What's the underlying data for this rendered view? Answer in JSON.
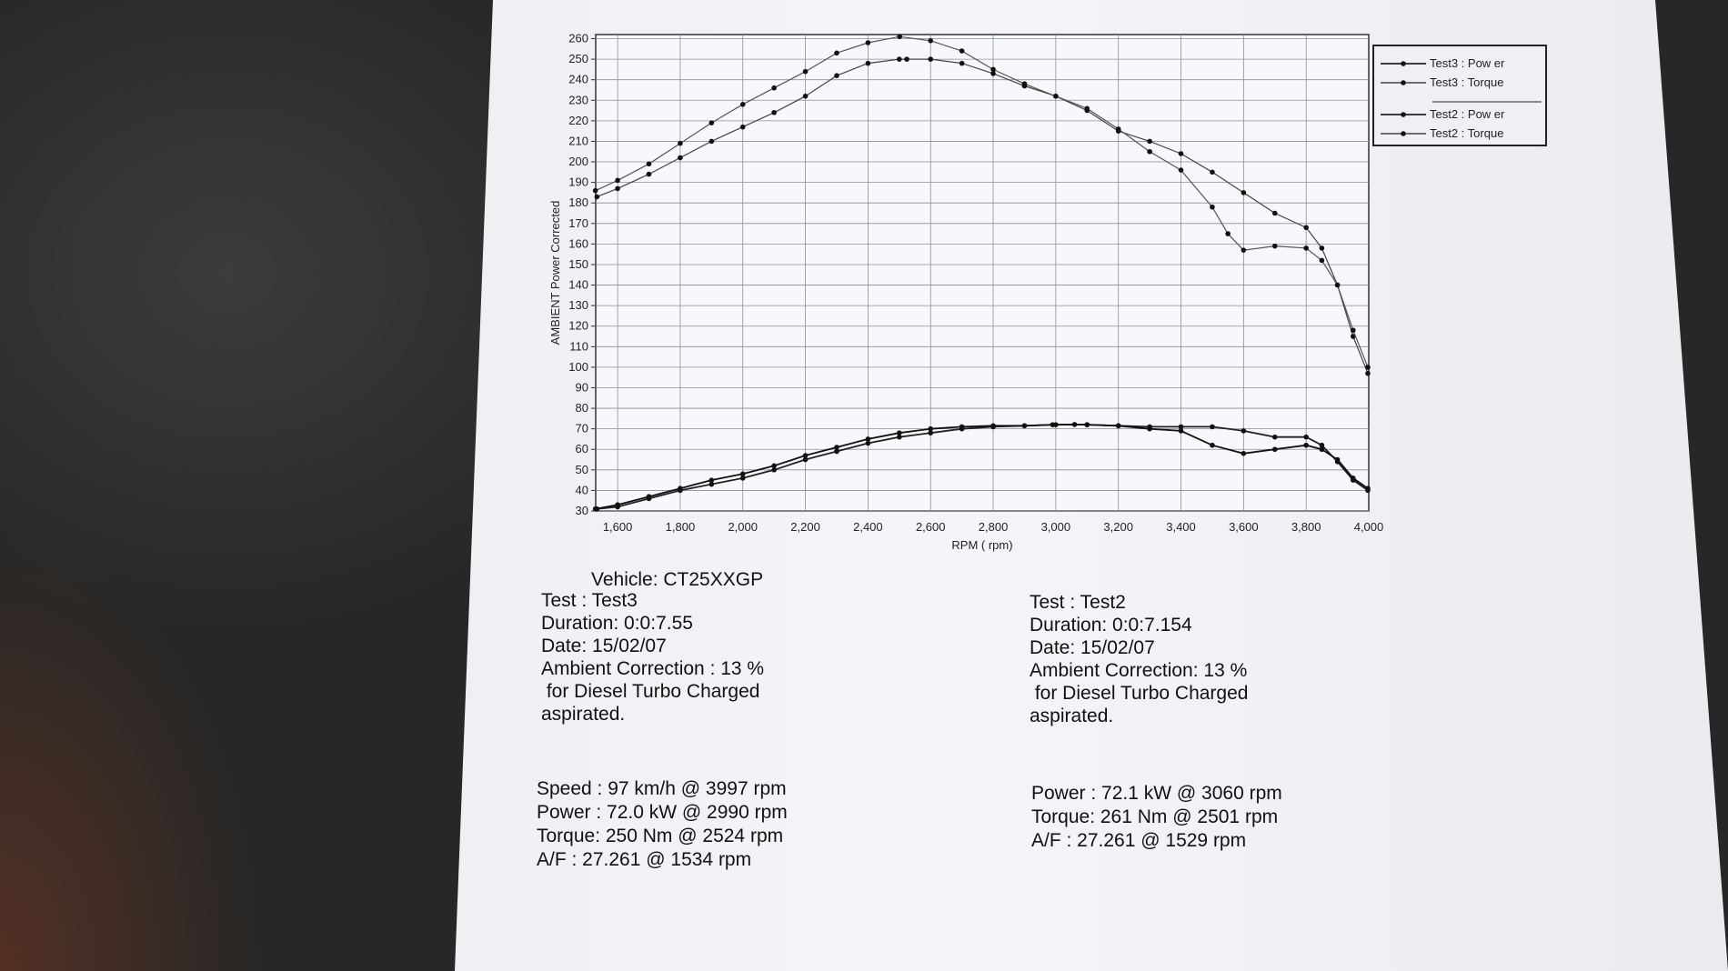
{
  "chart_data": {
    "type": "line",
    "xlabel": "RPM ( rpm)",
    "ylabel": "AMBIENT Power Corrected",
    "xlim": [
      1530,
      4000
    ],
    "ylim": [
      30,
      262
    ],
    "x_ticks": [
      "1,600",
      "1,800",
      "2,000",
      "2,200",
      "2,400",
      "2,600",
      "2,800",
      "3,000",
      "3,200",
      "3,400",
      "3,600",
      "3,800",
      "4,000"
    ],
    "y_ticks": [
      "30",
      "40",
      "50",
      "60",
      "70",
      "80",
      "90",
      "100",
      "110",
      "120",
      "130",
      "140",
      "150",
      "160",
      "170",
      "180",
      "190",
      "200",
      "210",
      "220",
      "230",
      "240",
      "250",
      "260"
    ],
    "grid": true,
    "legend_position": "top-right, outside plot",
    "series": [
      {
        "name": "Test3 : Pow er",
        "points": [
          [
            1534,
            31
          ],
          [
            1600,
            32
          ],
          [
            1700,
            36
          ],
          [
            1800,
            40
          ],
          [
            1900,
            43
          ],
          [
            2000,
            46
          ],
          [
            2100,
            50
          ],
          [
            2200,
            55
          ],
          [
            2300,
            59
          ],
          [
            2400,
            63
          ],
          [
            2500,
            66
          ],
          [
            2600,
            68
          ],
          [
            2700,
            70
          ],
          [
            2800,
            71
          ],
          [
            2900,
            71.5
          ],
          [
            2990,
            72
          ],
          [
            3100,
            72
          ],
          [
            3200,
            71.5
          ],
          [
            3300,
            71
          ],
          [
            3400,
            71
          ],
          [
            3500,
            71
          ],
          [
            3600,
            69
          ],
          [
            3700,
            66
          ],
          [
            3800,
            66
          ],
          [
            3850,
            62
          ],
          [
            3900,
            54
          ],
          [
            3950,
            45
          ],
          [
            3997,
            40
          ]
        ]
      },
      {
        "name": "Test3 : Torque",
        "points": [
          [
            1534,
            183
          ],
          [
            1600,
            187
          ],
          [
            1700,
            194
          ],
          [
            1800,
            202
          ],
          [
            1900,
            210
          ],
          [
            2000,
            217
          ],
          [
            2100,
            224
          ],
          [
            2200,
            232
          ],
          [
            2300,
            242
          ],
          [
            2400,
            248
          ],
          [
            2500,
            250
          ],
          [
            2524,
            250
          ],
          [
            2600,
            250
          ],
          [
            2700,
            248
          ],
          [
            2800,
            243
          ],
          [
            2900,
            237
          ],
          [
            3000,
            232
          ],
          [
            3100,
            225
          ],
          [
            3200,
            215
          ],
          [
            3300,
            210
          ],
          [
            3400,
            204
          ],
          [
            3500,
            195
          ],
          [
            3600,
            185
          ],
          [
            3700,
            175
          ],
          [
            3800,
            168
          ],
          [
            3850,
            158
          ],
          [
            3900,
            140
          ],
          [
            3950,
            115
          ],
          [
            3997,
            97
          ]
        ]
      },
      {
        "name": "Test2 : Pow er",
        "points": [
          [
            1529,
            31
          ],
          [
            1600,
            33
          ],
          [
            1700,
            37
          ],
          [
            1800,
            41
          ],
          [
            1900,
            45
          ],
          [
            2000,
            48
          ],
          [
            2100,
            52
          ],
          [
            2200,
            57
          ],
          [
            2300,
            61
          ],
          [
            2400,
            65
          ],
          [
            2500,
            68
          ],
          [
            2600,
            70
          ],
          [
            2700,
            71
          ],
          [
            2800,
            71.5
          ],
          [
            2900,
            71.5
          ],
          [
            3000,
            72
          ],
          [
            3060,
            72.1
          ],
          [
            3100,
            72
          ],
          [
            3200,
            71.5
          ],
          [
            3300,
            70
          ],
          [
            3400,
            69
          ],
          [
            3500,
            62
          ],
          [
            3600,
            58
          ],
          [
            3700,
            60
          ],
          [
            3800,
            62
          ],
          [
            3850,
            60
          ],
          [
            3900,
            55
          ],
          [
            3950,
            46
          ],
          [
            3997,
            41
          ]
        ]
      },
      {
        "name": "Test2 : Torque",
        "points": [
          [
            1529,
            186
          ],
          [
            1600,
            191
          ],
          [
            1700,
            199
          ],
          [
            1800,
            209
          ],
          [
            1900,
            219
          ],
          [
            2000,
            228
          ],
          [
            2100,
            236
          ],
          [
            2200,
            244
          ],
          [
            2300,
            253
          ],
          [
            2400,
            258
          ],
          [
            2501,
            261
          ],
          [
            2600,
            259
          ],
          [
            2700,
            254
          ],
          [
            2800,
            245
          ],
          [
            2900,
            238
          ],
          [
            3000,
            232
          ],
          [
            3100,
            226
          ],
          [
            3200,
            216
          ],
          [
            3300,
            205
          ],
          [
            3400,
            196
          ],
          [
            3500,
            178
          ],
          [
            3550,
            165
          ],
          [
            3600,
            157
          ],
          [
            3700,
            159
          ],
          [
            3800,
            158
          ],
          [
            3850,
            152
          ],
          [
            3900,
            140
          ],
          [
            3950,
            118
          ],
          [
            3997,
            100
          ]
        ]
      }
    ]
  },
  "vehicle": "Vehicle: CT25XXGP",
  "test3": {
    "test": "Test    : Test3",
    "duration": "Duration: 0:0:7.55",
    "date": "Date: 15/02/07",
    "ambient": "Ambient Correction : 13 %",
    "fuel": " for Diesel Turbo Charged",
    "aspirated": "aspirated.",
    "speed": "Speed : 97 km/h @ 3997 rpm",
    "power": "Power : 72.0 kW @ 2990 rpm",
    "torque": "Torque: 250 Nm @ 2524 rpm",
    "af": "A/F : 27.261 @ 1534 rpm"
  },
  "test2": {
    "test": "Test    : Test2",
    "duration": "Duration: 0:0:7.154",
    "date": "Date: 15/02/07",
    "ambient": "Ambient Correction: 13 %",
    "fuel": " for Diesel Turbo Charged",
    "aspirated": "aspirated.",
    "power": "Power : 72.1 kW @ 3060 rpm",
    "torque": "Torque: 261 Nm @ 2501 rpm",
    "af": "A/F : 27.261 @ 1529 rpm"
  }
}
